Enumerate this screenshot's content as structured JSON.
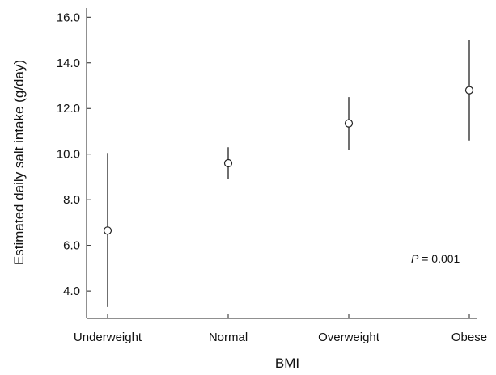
{
  "chart_data": {
    "type": "scatter",
    "categories": [
      "Underweight",
      "Normal",
      "Overweight",
      "Obese"
    ],
    "series": [
      {
        "values": [
          6.65,
          9.6,
          11.35,
          12.8
        ],
        "error_low": [
          3.3,
          8.9,
          10.2,
          10.6
        ],
        "error_high": [
          10.05,
          10.3,
          12.5,
          15.0
        ]
      }
    ],
    "xlabel": "BMI",
    "ylabel": "Estimated daily salt intake (g/day)",
    "ylim": [
      2.8,
      16.4
    ],
    "yticks": [
      4.0,
      6.0,
      8.0,
      10.0,
      12.0,
      14.0,
      16.0
    ],
    "ytick_labels": [
      "4.0",
      "6.0",
      "8.0",
      "10.0",
      "12.0",
      "14.0",
      "16.0"
    ],
    "grid": false,
    "annotation": {
      "italic": "P",
      "rest": " = 0.001"
    }
  }
}
